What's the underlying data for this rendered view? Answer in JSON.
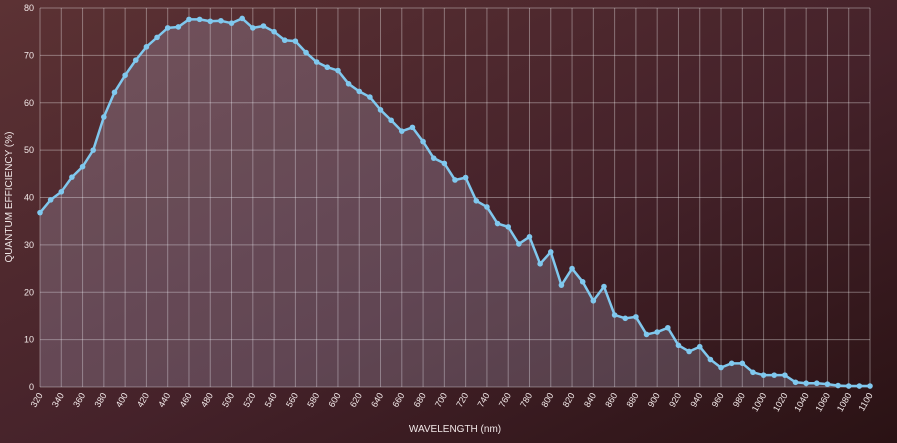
{
  "chart_data": {
    "type": "area",
    "xlabel": "WAVELENGTH (nm)",
    "ylabel": "QUANTUM EFFICIENCY (%)",
    "x": [
      320,
      330,
      340,
      350,
      360,
      370,
      380,
      390,
      400,
      410,
      420,
      430,
      440,
      450,
      460,
      470,
      480,
      490,
      500,
      510,
      520,
      530,
      540,
      550,
      560,
      570,
      580,
      590,
      600,
      610,
      620,
      630,
      640,
      650,
      660,
      670,
      680,
      690,
      700,
      710,
      720,
      730,
      740,
      750,
      760,
      770,
      780,
      790,
      800,
      810,
      820,
      830,
      840,
      850,
      860,
      870,
      880,
      890,
      900,
      910,
      920,
      930,
      940,
      950,
      960,
      970,
      980,
      990,
      1000,
      1010,
      1020,
      1030,
      1040,
      1050,
      1060,
      1070,
      1080,
      1090,
      1100
    ],
    "values": [
      36.8,
      39.5,
      41.2,
      44.3,
      46.5,
      50,
      57,
      62.2,
      65.8,
      69,
      71.8,
      73.8,
      75.8,
      76,
      77.6,
      77.6,
      77.2,
      77.3,
      76.8,
      77.8,
      75.8,
      76.2,
      75,
      73.2,
      73,
      70.6,
      68.6,
      67.5,
      66.8,
      64,
      62.4,
      61.2,
      58.5,
      56.3,
      54,
      54.8,
      51.8,
      48.3,
      47.2,
      43.7,
      44.2,
      39.3,
      38,
      34.5,
      33.8,
      30.2,
      31.7,
      26,
      28.5,
      21.5,
      25,
      22.2,
      18.2,
      21.2,
      15.2,
      14.5,
      14.8,
      11.1,
      11.6,
      12.5,
      8.8,
      7.5,
      8.5,
      5.8,
      4.1,
      5,
      5,
      3.1,
      2.5,
      2.5,
      2.5,
      1,
      0.8,
      0.8,
      0.6,
      0.3,
      0.2,
      0.2,
      0.2
    ],
    "color": "#80c8ee",
    "xlim": [
      320,
      1100
    ],
    "ylim": [
      0,
      80
    ],
    "xticks": [
      320,
      340,
      360,
      380,
      400,
      420,
      440,
      460,
      480,
      500,
      520,
      540,
      560,
      580,
      600,
      620,
      640,
      660,
      680,
      700,
      720,
      740,
      760,
      780,
      800,
      820,
      840,
      860,
      880,
      900,
      920,
      940,
      960,
      980,
      1000,
      1020,
      1040,
      1060,
      1080,
      1100
    ],
    "yticks": [
      0,
      10,
      20,
      30,
      40,
      50,
      60,
      70,
      80
    ],
    "grid": true
  }
}
